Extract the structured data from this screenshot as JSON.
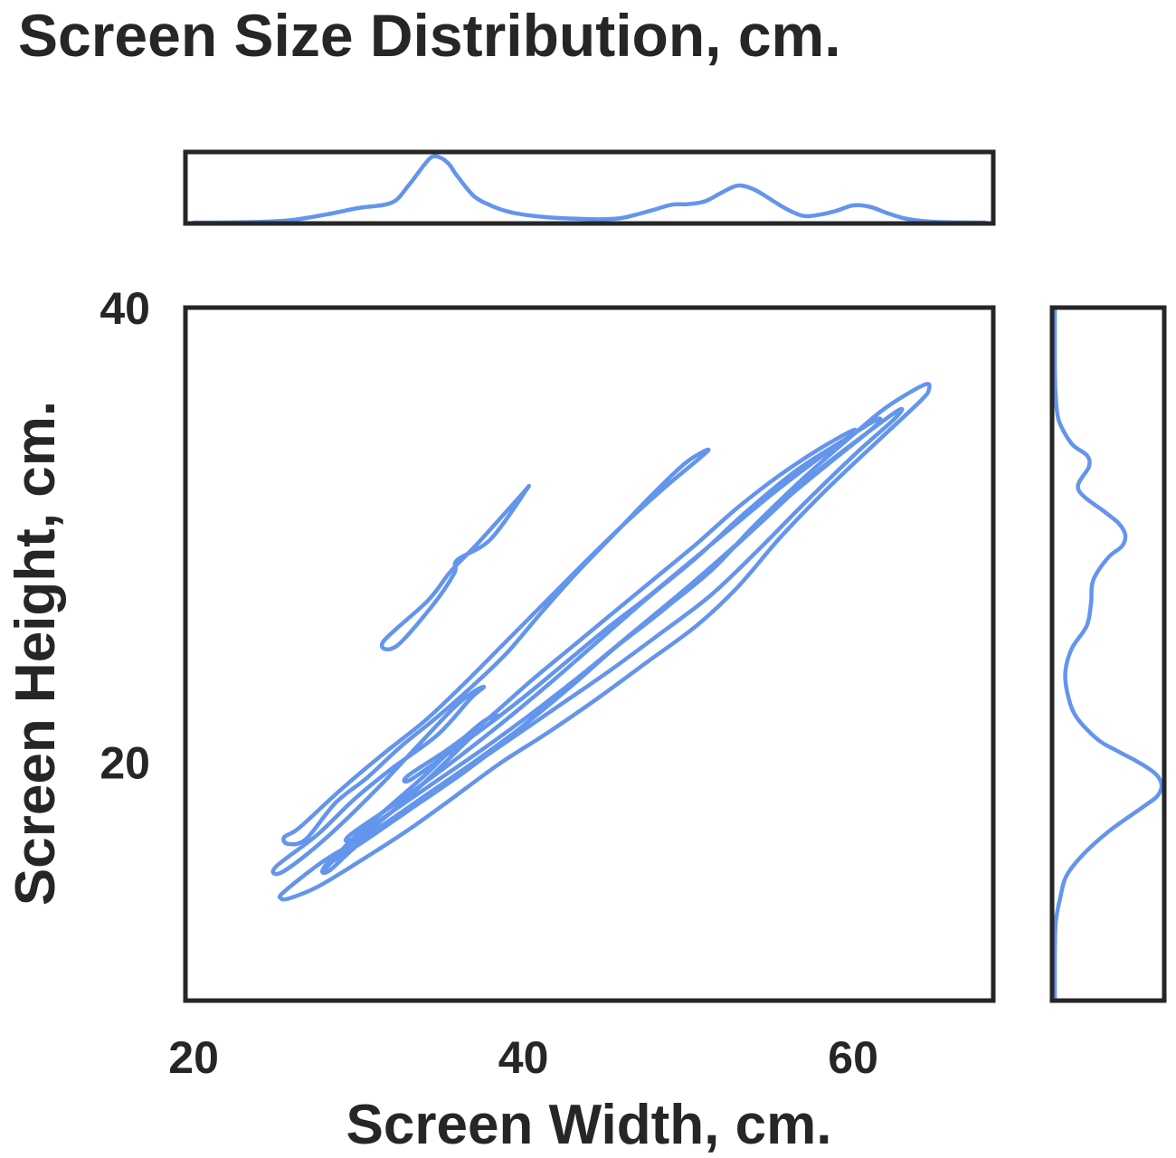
{
  "colors": {
    "series": "#6495ED",
    "axes": "#262626",
    "background": "#ffffff"
  },
  "chart_data": {
    "type": "kde-jointplot",
    "title": "Screen Size Distribution, cm.",
    "xlabel": "Screen Width, cm.",
    "ylabel": "Screen Height, cm.",
    "xlim": [
      19.5,
      68.5
    ],
    "ylim": [
      9.5,
      40
    ],
    "xticks": [
      20,
      40,
      60
    ],
    "yticks": [
      20,
      40
    ],
    "grid": false,
    "legend": "none",
    "contours": [
      {
        "name": "contour-upper-island",
        "points": [
          [
            32.3,
            25.1
          ],
          [
            34.5,
            26.9
          ],
          [
            35.8,
            28.3
          ],
          [
            36.0,
            28.9
          ],
          [
            38.0,
            29.8
          ],
          [
            40.2,
            32.0
          ],
          [
            39.8,
            31.7
          ],
          [
            37.2,
            29.6
          ],
          [
            35.6,
            28.4
          ],
          [
            34.2,
            27.1
          ],
          [
            31.5,
            25.3
          ]
        ]
      },
      {
        "name": "contour-ribbon",
        "points": [
          [
            26.4,
            17.1
          ],
          [
            28.8,
            18.7
          ],
          [
            31.4,
            20.3
          ],
          [
            34.0,
            21.8
          ],
          [
            36.2,
            23.3
          ],
          [
            38.4,
            24.9
          ],
          [
            41.0,
            26.8
          ],
          [
            43.6,
            28.7
          ],
          [
            46.0,
            30.4
          ],
          [
            48.6,
            32.1
          ],
          [
            51.2,
            33.7
          ],
          [
            49.9,
            33.2
          ],
          [
            48.0,
            31.9
          ],
          [
            45.6,
            30.1
          ],
          [
            43.2,
            28.3
          ],
          [
            41.0,
            26.5
          ],
          [
            39.0,
            24.8
          ],
          [
            37.0,
            23.4
          ],
          [
            34.8,
            22.0
          ],
          [
            32.6,
            20.7
          ],
          [
            30.5,
            19.3
          ],
          [
            28.6,
            18.2
          ],
          [
            26.8,
            16.6
          ],
          [
            25.7,
            16.4
          ],
          [
            25.5,
            16.7
          ]
        ]
      },
      {
        "name": "contour-outer-main",
        "points": [
          [
            25.5,
            14.3
          ],
          [
            28.0,
            15.7
          ],
          [
            31.0,
            17.0
          ],
          [
            34.0,
            18.5
          ],
          [
            37.0,
            20.0
          ],
          [
            40.0,
            21.6
          ],
          [
            43.0,
            23.4
          ],
          [
            46.0,
            25.3
          ],
          [
            49.0,
            27.0
          ],
          [
            51.5,
            28.5
          ],
          [
            54.0,
            30.4
          ],
          [
            57.0,
            32.5
          ],
          [
            60.0,
            34.4
          ],
          [
            62.0,
            35.6
          ],
          [
            64.3,
            36.6
          ],
          [
            64.6,
            36.4
          ],
          [
            64.1,
            35.9
          ],
          [
            61.6,
            34.2
          ],
          [
            58.4,
            32.0
          ],
          [
            55.6,
            29.9
          ],
          [
            53.0,
            27.7
          ],
          [
            50.5,
            26.0
          ],
          [
            47.5,
            24.4
          ],
          [
            44.5,
            22.8
          ],
          [
            41.5,
            21.3
          ],
          [
            38.5,
            19.9
          ],
          [
            35.5,
            18.3
          ],
          [
            33.0,
            17.0
          ],
          [
            30.0,
            15.6
          ],
          [
            27.5,
            14.5
          ],
          [
            25.8,
            14.0
          ],
          [
            25.3,
            14.0
          ]
        ]
      },
      {
        "name": "contour-left-lobe",
        "points": [
          [
            25.0,
            15.4
          ],
          [
            27.5,
            16.8
          ],
          [
            29.8,
            18.4
          ],
          [
            32.0,
            19.7
          ],
          [
            34.8,
            21.2
          ],
          [
            36.8,
            22.8
          ],
          [
            37.6,
            23.3
          ],
          [
            37.0,
            23.1
          ],
          [
            35.8,
            22.4
          ],
          [
            33.7,
            20.8
          ],
          [
            31.5,
            19.1
          ],
          [
            29.0,
            17.3
          ],
          [
            26.8,
            15.9
          ],
          [
            25.2,
            15.1
          ]
        ]
      },
      {
        "name": "contour-mid-main",
        "points": [
          [
            28.0,
            15.4
          ],
          [
            30.5,
            16.6
          ],
          [
            33.5,
            18.1
          ],
          [
            36.5,
            19.6
          ],
          [
            39.5,
            21.3
          ],
          [
            42.5,
            23.2
          ],
          [
            45.5,
            25.0
          ],
          [
            48.5,
            26.7
          ],
          [
            51.5,
            28.6
          ],
          [
            54.5,
            30.6
          ],
          [
            57.5,
            32.6
          ],
          [
            60.5,
            34.3
          ],
          [
            62.8,
            35.5
          ],
          [
            62.5,
            35.1
          ],
          [
            60.2,
            33.6
          ],
          [
            57.2,
            31.5
          ],
          [
            54.2,
            29.3
          ],
          [
            51.3,
            27.3
          ],
          [
            48.2,
            25.6
          ],
          [
            45.2,
            24.0
          ],
          [
            42.2,
            22.5
          ],
          [
            39.2,
            21.0
          ],
          [
            36.2,
            19.5
          ],
          [
            33.2,
            18.0
          ],
          [
            30.2,
            16.5
          ],
          [
            28.2,
            15.2
          ]
        ]
      },
      {
        "name": "contour-lower-lobe",
        "points": [
          [
            28.2,
            15.6
          ],
          [
            30.5,
            16.9
          ],
          [
            32.8,
            18.3
          ],
          [
            35.0,
            19.8
          ],
          [
            37.0,
            21.2
          ],
          [
            38.5,
            22.0
          ],
          [
            37.6,
            21.8
          ],
          [
            36.0,
            20.8
          ],
          [
            34.0,
            19.4
          ],
          [
            31.8,
            18.0
          ],
          [
            29.6,
            16.6
          ],
          [
            28.0,
            15.3
          ]
        ]
      },
      {
        "name": "contour-inner-main",
        "points": [
          [
            29.5,
            16.8
          ],
          [
            32.5,
            18.3
          ],
          [
            35.5,
            19.9
          ],
          [
            38.5,
            21.6
          ],
          [
            41.5,
            23.4
          ],
          [
            44.5,
            25.3
          ],
          [
            47.5,
            27.2
          ],
          [
            50.5,
            29.0
          ],
          [
            53.5,
            31.0
          ],
          [
            56.5,
            32.8
          ],
          [
            59.5,
            34.2
          ],
          [
            61.5,
            35.1
          ],
          [
            61.2,
            34.7
          ],
          [
            58.8,
            33.3
          ],
          [
            55.8,
            31.5
          ],
          [
            52.8,
            29.5
          ],
          [
            49.8,
            27.6
          ],
          [
            46.8,
            25.8
          ],
          [
            43.8,
            24.0
          ],
          [
            40.8,
            22.3
          ],
          [
            37.8,
            20.7
          ],
          [
            34.8,
            19.2
          ],
          [
            31.8,
            17.7
          ],
          [
            29.6,
            16.6
          ]
        ]
      },
      {
        "name": "contour-core",
        "points": [
          [
            33.0,
            19.4
          ],
          [
            35.5,
            20.6
          ],
          [
            38.0,
            22.0
          ],
          [
            40.5,
            23.6
          ],
          [
            43.0,
            25.1
          ],
          [
            45.5,
            26.6
          ],
          [
            48.0,
            28.1
          ],
          [
            50.5,
            29.6
          ],
          [
            53.0,
            31.2
          ],
          [
            55.5,
            32.6
          ],
          [
            58.0,
            33.8
          ],
          [
            60.0,
            34.6
          ],
          [
            59.7,
            34.3
          ],
          [
            57.6,
            33.2
          ],
          [
            55.1,
            31.8
          ],
          [
            52.6,
            30.3
          ],
          [
            50.1,
            28.8
          ],
          [
            47.6,
            27.3
          ],
          [
            45.1,
            25.9
          ],
          [
            42.6,
            24.4
          ],
          [
            40.1,
            22.9
          ],
          [
            37.6,
            21.5
          ],
          [
            35.1,
            20.2
          ],
          [
            33.1,
            19.2
          ]
        ]
      }
    ],
    "marginal_x": {
      "orientation": "top",
      "x": [
        20,
        22,
        24,
        26,
        28,
        30,
        32,
        33,
        34,
        34.5,
        35,
        35.5,
        36,
        37,
        38,
        39,
        40,
        41,
        42,
        43,
        44,
        45,
        46,
        47,
        48,
        49,
        50,
        51,
        52,
        53,
        54,
        55,
        56,
        57,
        58,
        59,
        60,
        61,
        62,
        63,
        64,
        65,
        66,
        67,
        68
      ],
      "density": [
        0.0,
        0.002,
        0.01,
        0.04,
        0.12,
        0.22,
        0.3,
        0.55,
        0.88,
        1.0,
        0.98,
        0.88,
        0.7,
        0.4,
        0.26,
        0.17,
        0.12,
        0.09,
        0.07,
        0.06,
        0.05,
        0.05,
        0.07,
        0.13,
        0.2,
        0.27,
        0.28,
        0.32,
        0.45,
        0.56,
        0.5,
        0.35,
        0.2,
        0.1,
        0.12,
        0.18,
        0.26,
        0.24,
        0.15,
        0.07,
        0.03,
        0.01,
        0.004,
        0.001,
        0.0
      ]
    },
    "marginal_y": {
      "orientation": "right",
      "y": [
        9.5,
        11,
        12,
        13,
        14,
        15,
        16,
        17,
        18,
        18.5,
        19,
        19.5,
        20,
        20.5,
        21,
        22,
        23,
        24,
        25,
        26,
        27,
        28,
        29,
        29.5,
        30,
        30.5,
        31,
        32,
        33,
        33.5,
        34,
        35,
        36,
        37,
        38,
        39,
        40
      ],
      "density": [
        0.0,
        0.0,
        0.002,
        0.01,
        0.05,
        0.11,
        0.28,
        0.52,
        0.82,
        0.96,
        1.0,
        0.94,
        0.78,
        0.58,
        0.4,
        0.2,
        0.12,
        0.1,
        0.16,
        0.3,
        0.34,
        0.36,
        0.5,
        0.63,
        0.66,
        0.6,
        0.47,
        0.22,
        0.32,
        0.3,
        0.16,
        0.04,
        0.01,
        0.002,
        0.0,
        0.0,
        0.0
      ]
    }
  }
}
